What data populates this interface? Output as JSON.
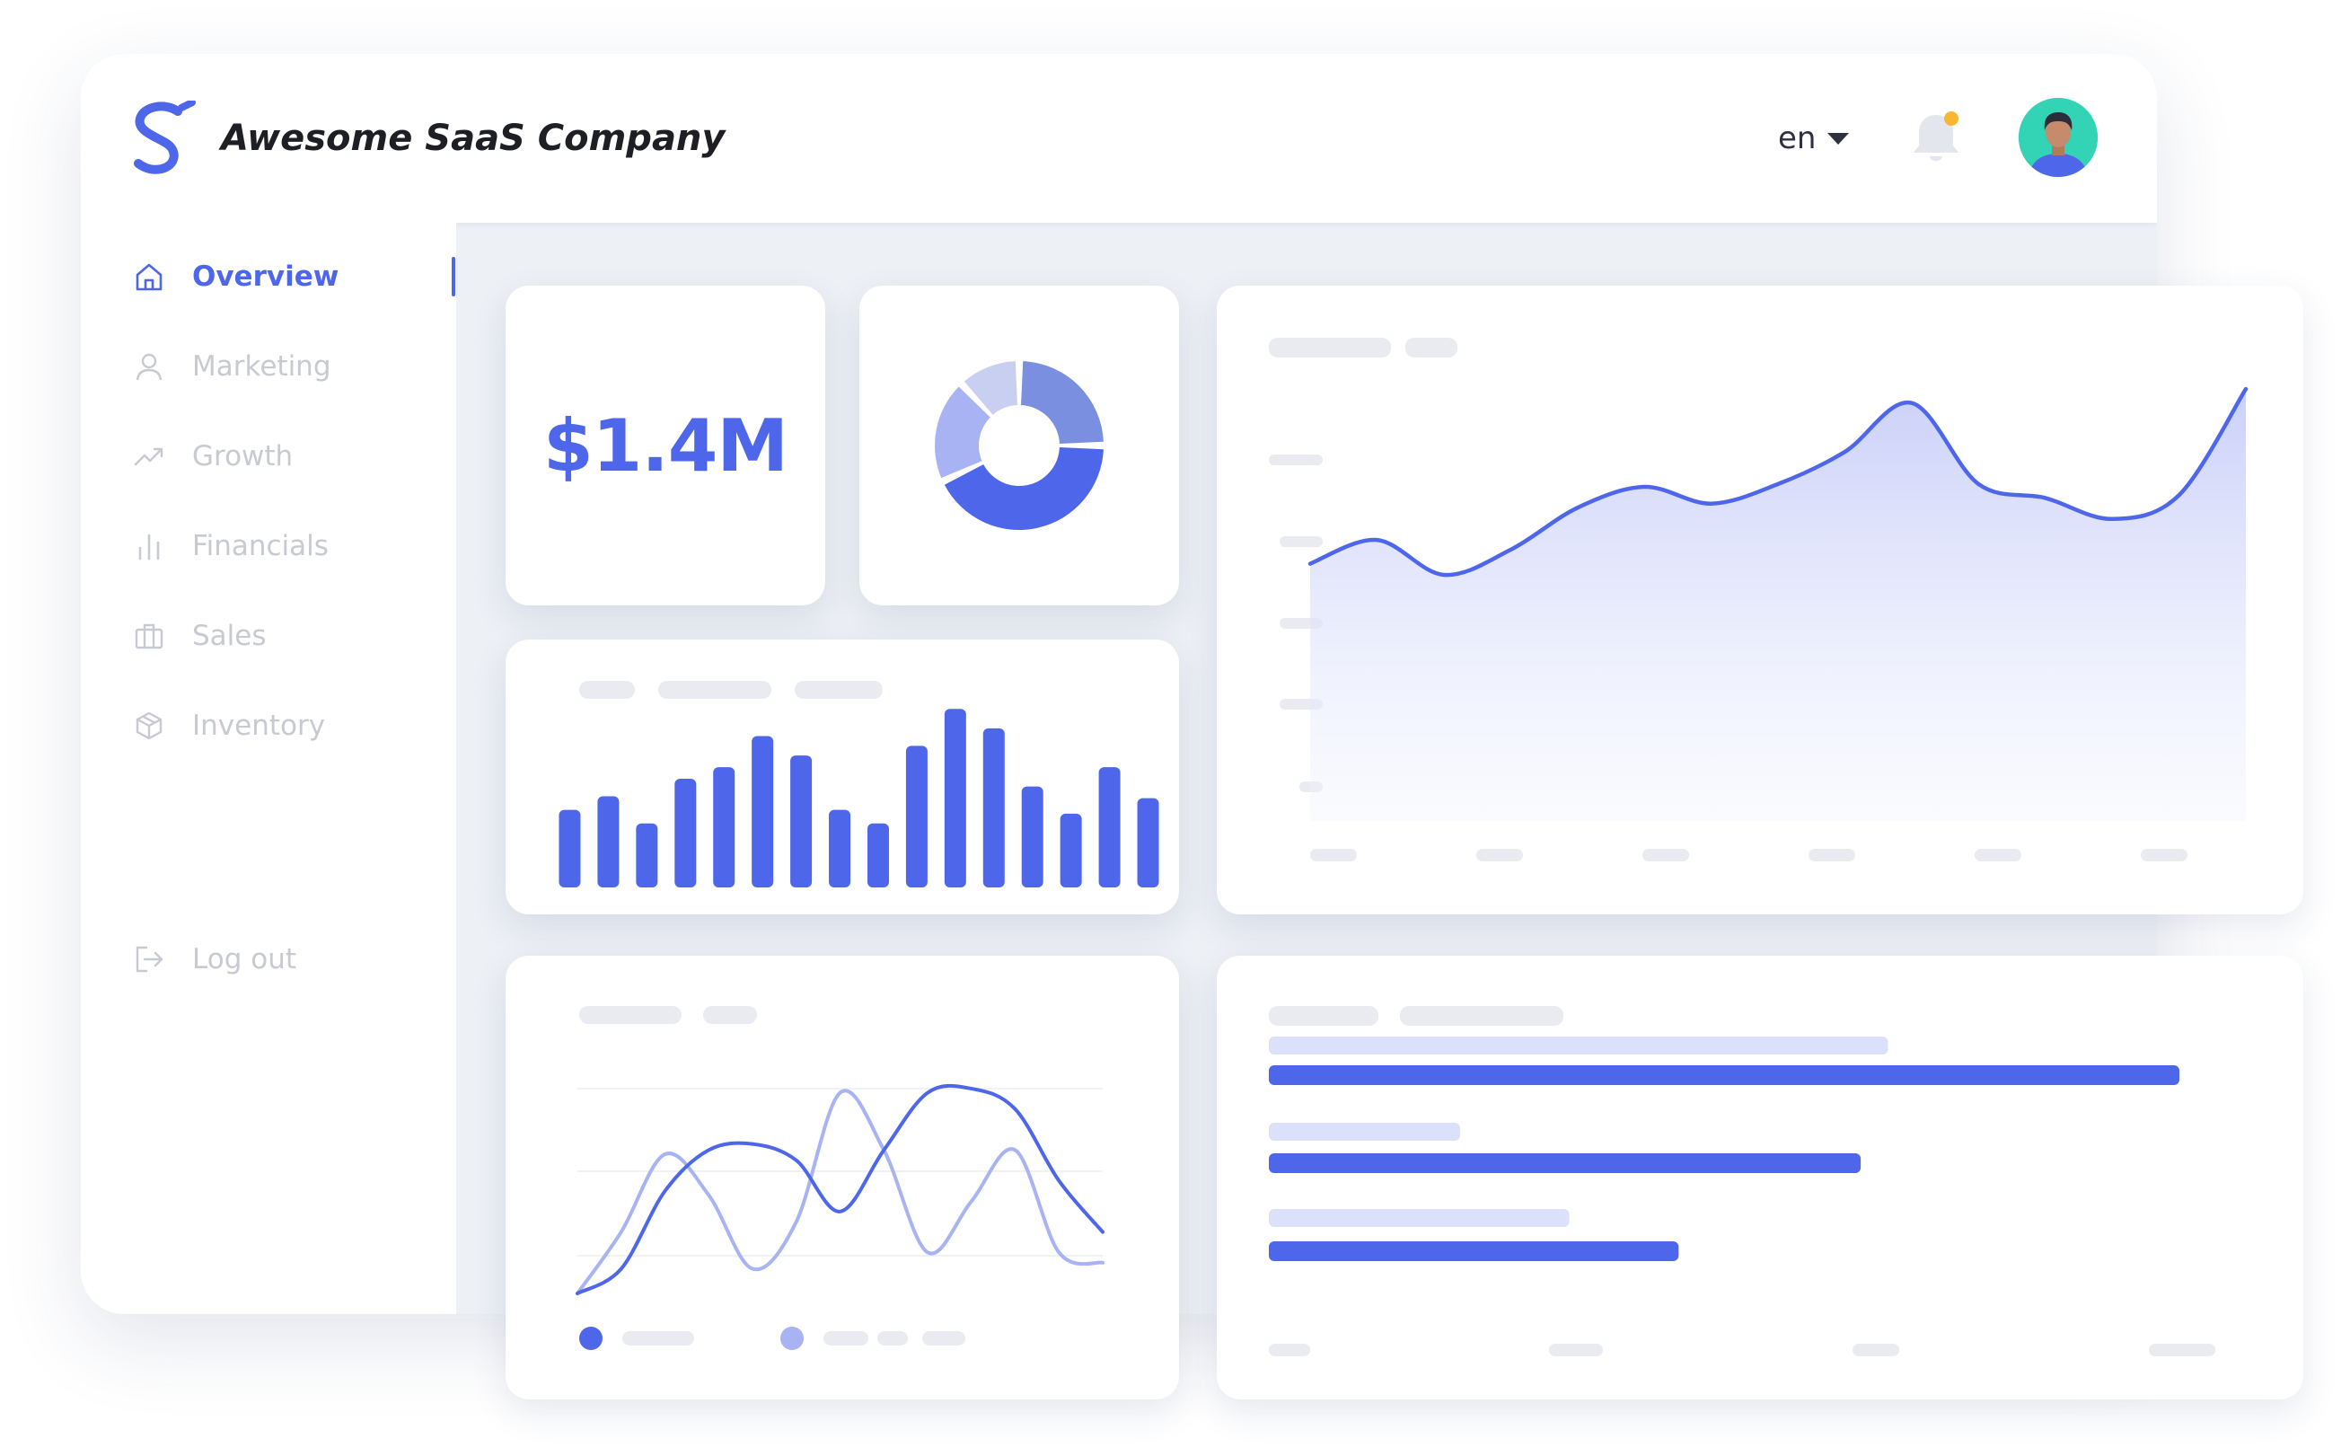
{
  "header": {
    "brand_name": "Awesome SaaS Company",
    "language": "en",
    "colors": {
      "accent": "#4e67ea",
      "notification_dot": "#f7b733",
      "avatar_bg": "#33d3b6"
    },
    "icons": {
      "logo": "s-logo-icon",
      "language": "caret-down-icon",
      "notifications": "bell-icon",
      "user": "avatar-icon"
    }
  },
  "sidebar": {
    "items": [
      {
        "label": "Overview",
        "icon": "home-icon",
        "active": true
      },
      {
        "label": "Marketing",
        "icon": "user-icon",
        "active": false
      },
      {
        "label": "Growth",
        "icon": "trending-up-icon",
        "active": false
      },
      {
        "label": "Financials",
        "icon": "bar-chart-icon",
        "active": false
      },
      {
        "label": "Sales",
        "icon": "briefcase-icon",
        "active": false
      },
      {
        "label": "Inventory",
        "icon": "box-icon",
        "active": false
      }
    ],
    "logout": {
      "label": "Log out",
      "icon": "logout-icon"
    }
  },
  "widgets": {
    "kpi": {
      "value": "$1.4M"
    }
  },
  "chart_data": [
    {
      "type": "pie",
      "name": "donut",
      "values": [
        25,
        43,
        20,
        12
      ],
      "colors": [
        "#7b8fe0",
        "#4e67ea",
        "#a8b3f4",
        "#c9cff0"
      ]
    },
    {
      "type": "bar",
      "name": "small-bars",
      "values": [
        40,
        47,
        33,
        56,
        62,
        78,
        68,
        40,
        33,
        73,
        92,
        82,
        52,
        38,
        62,
        46
      ],
      "ylim": [
        0,
        100
      ],
      "color": "#4e67ea"
    },
    {
      "type": "area",
      "name": "main-area",
      "x": [
        0,
        1,
        2,
        3,
        4,
        5,
        6,
        7,
        8,
        9,
        10,
        11,
        12,
        13,
        14
      ],
      "values": [
        35,
        52,
        27,
        45,
        75,
        90,
        78,
        92,
        115,
        150,
        92,
        82,
        67,
        84,
        160
      ],
      "ylim": [
        0,
        180
      ],
      "color": "#4e67ea"
    },
    {
      "type": "line",
      "name": "dual-lines",
      "x": [
        0,
        1,
        2,
        3,
        4,
        5,
        6,
        7,
        8,
        9,
        10,
        11,
        12
      ],
      "series": [
        {
          "values": [
            0,
            12,
            50,
            70,
            73,
            65,
            40,
            70,
            98,
            100,
            90,
            55,
            30
          ],
          "color": "#4e67ea"
        },
        {
          "values": [
            0,
            30,
            68,
            48,
            12,
            35,
            98,
            70,
            20,
            45,
            70,
            20,
            15
          ],
          "color": "#a8b3f4"
        }
      ],
      "ylim": [
        0,
        100
      ]
    },
    {
      "type": "bar",
      "name": "horizontal-bars",
      "orientation": "horizontal",
      "values": [
        100,
        65,
        45
      ],
      "secondary_values": [
        68,
        21,
        33
      ],
      "xlim": [
        0,
        100
      ],
      "color": "#4e67ea",
      "secondary_color": "#dce1fb"
    }
  ]
}
